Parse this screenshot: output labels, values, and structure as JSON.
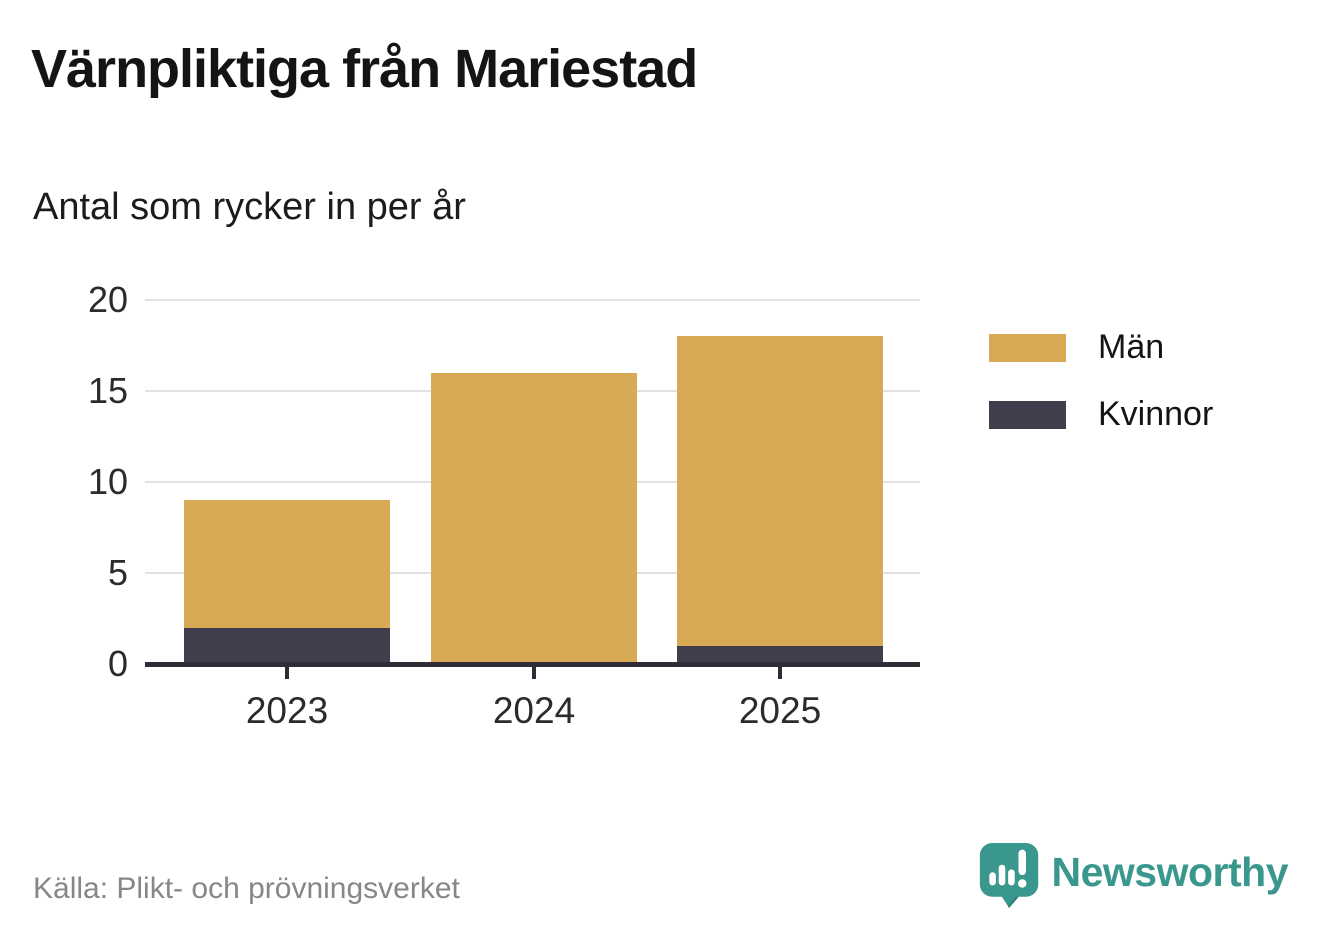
{
  "header": {
    "title": "Värnpliktiga från Mariestad",
    "subtitle": "Antal som rycker in per år"
  },
  "chart_data": {
    "type": "bar",
    "stacked": true,
    "title": "Värnpliktiga från Mariestad",
    "subtitle": "Antal som rycker in per år",
    "categories": [
      "2023",
      "2024",
      "2025"
    ],
    "series": [
      {
        "name": "Män",
        "values": [
          7,
          16,
          17
        ],
        "color": "#d8aa55"
      },
      {
        "name": "Kvinnor",
        "values": [
          2,
          0,
          1
        ],
        "color": "#403e4d"
      }
    ],
    "stack_order_bottom_to_top": [
      "Kvinnor",
      "Män"
    ],
    "totals": [
      9,
      16,
      18
    ],
    "xlabel": "",
    "ylabel": "",
    "ylim": [
      0,
      20
    ],
    "yticks": [
      0,
      5,
      10,
      15,
      20
    ],
    "grid": true,
    "legend_position": "right"
  },
  "footer": {
    "source": "Källa: Plikt- och prövningsverket",
    "brand": "Newsworthy"
  },
  "icons": {
    "brand_icon": "newsworthy-speech-bubble-bar-chart-icon"
  },
  "colors": {
    "men_gold": "#d8aa55",
    "women_dark": "#403e4d",
    "axis": "#2e2c37",
    "gridline": "#e2e2e2",
    "tick_text": "#2b2b2b",
    "title_text": "#141414",
    "muted_text": "#878787",
    "brand_teal": "#3a978d",
    "background": "#ffffff"
  }
}
